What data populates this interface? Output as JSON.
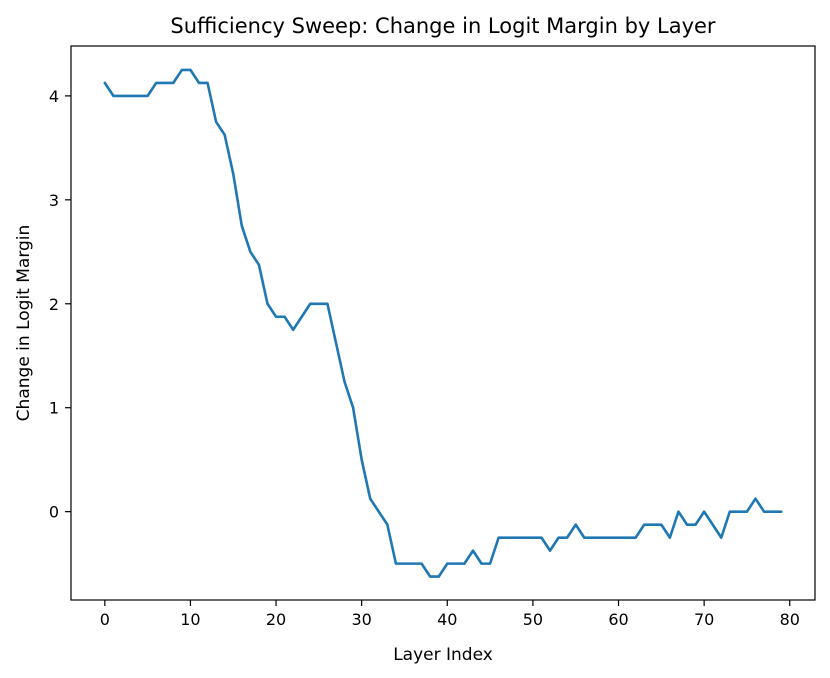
{
  "chart_data": {
    "type": "line",
    "title": "Sufficiency Sweep: Change in Logit Margin by Layer",
    "xlabel": "Layer Index",
    "ylabel": "Change in Logit Margin",
    "xlim": [
      -3.95,
      82.95
    ],
    "ylim": [
      -0.85,
      4.48
    ],
    "xticks": [
      0,
      10,
      20,
      30,
      40,
      50,
      60,
      70,
      80
    ],
    "yticks": [
      0,
      1,
      2,
      3,
      4
    ],
    "grid": false,
    "series": [
      {
        "color": "#1f77b4",
        "x": [
          0,
          1,
          2,
          3,
          4,
          5,
          6,
          7,
          8,
          9,
          10,
          11,
          12,
          13,
          14,
          15,
          16,
          17,
          18,
          19,
          20,
          21,
          22,
          23,
          24,
          25,
          26,
          27,
          28,
          29,
          30,
          31,
          32,
          33,
          34,
          35,
          36,
          37,
          38,
          39,
          40,
          41,
          42,
          43,
          44,
          45,
          46,
          47,
          48,
          49,
          50,
          51,
          52,
          53,
          54,
          55,
          56,
          57,
          58,
          59,
          60,
          61,
          62,
          63,
          64,
          65,
          66,
          67,
          68,
          69,
          70,
          71,
          72,
          73,
          74,
          75,
          76,
          77,
          78,
          79
        ],
        "y": [
          4.125,
          4.0,
          4.0,
          4.0,
          4.0,
          4.0,
          4.125,
          4.125,
          4.125,
          4.25,
          4.25,
          4.125,
          4.125,
          3.75,
          3.625,
          3.25,
          2.75,
          2.5,
          2.375,
          2.0,
          1.875,
          1.875,
          1.75,
          1.875,
          2.0,
          2.0,
          2.0,
          1.625,
          1.25,
          1.0,
          0.5,
          0.125,
          0.0,
          -0.125,
          -0.5,
          -0.5,
          -0.5,
          -0.5,
          -0.625,
          -0.625,
          -0.5,
          -0.5,
          -0.5,
          -0.375,
          -0.5,
          -0.5,
          -0.25,
          -0.25,
          -0.25,
          -0.25,
          -0.25,
          -0.25,
          -0.375,
          -0.25,
          -0.25,
          -0.125,
          -0.25,
          -0.25,
          -0.25,
          -0.25,
          -0.25,
          -0.25,
          -0.25,
          -0.125,
          -0.125,
          -0.125,
          -0.25,
          0.0,
          -0.125,
          -0.125,
          0.0,
          -0.125,
          -0.25,
          0.0,
          0.0,
          0.0,
          0.125,
          0.0,
          0.0,
          0.0
        ]
      }
    ]
  }
}
